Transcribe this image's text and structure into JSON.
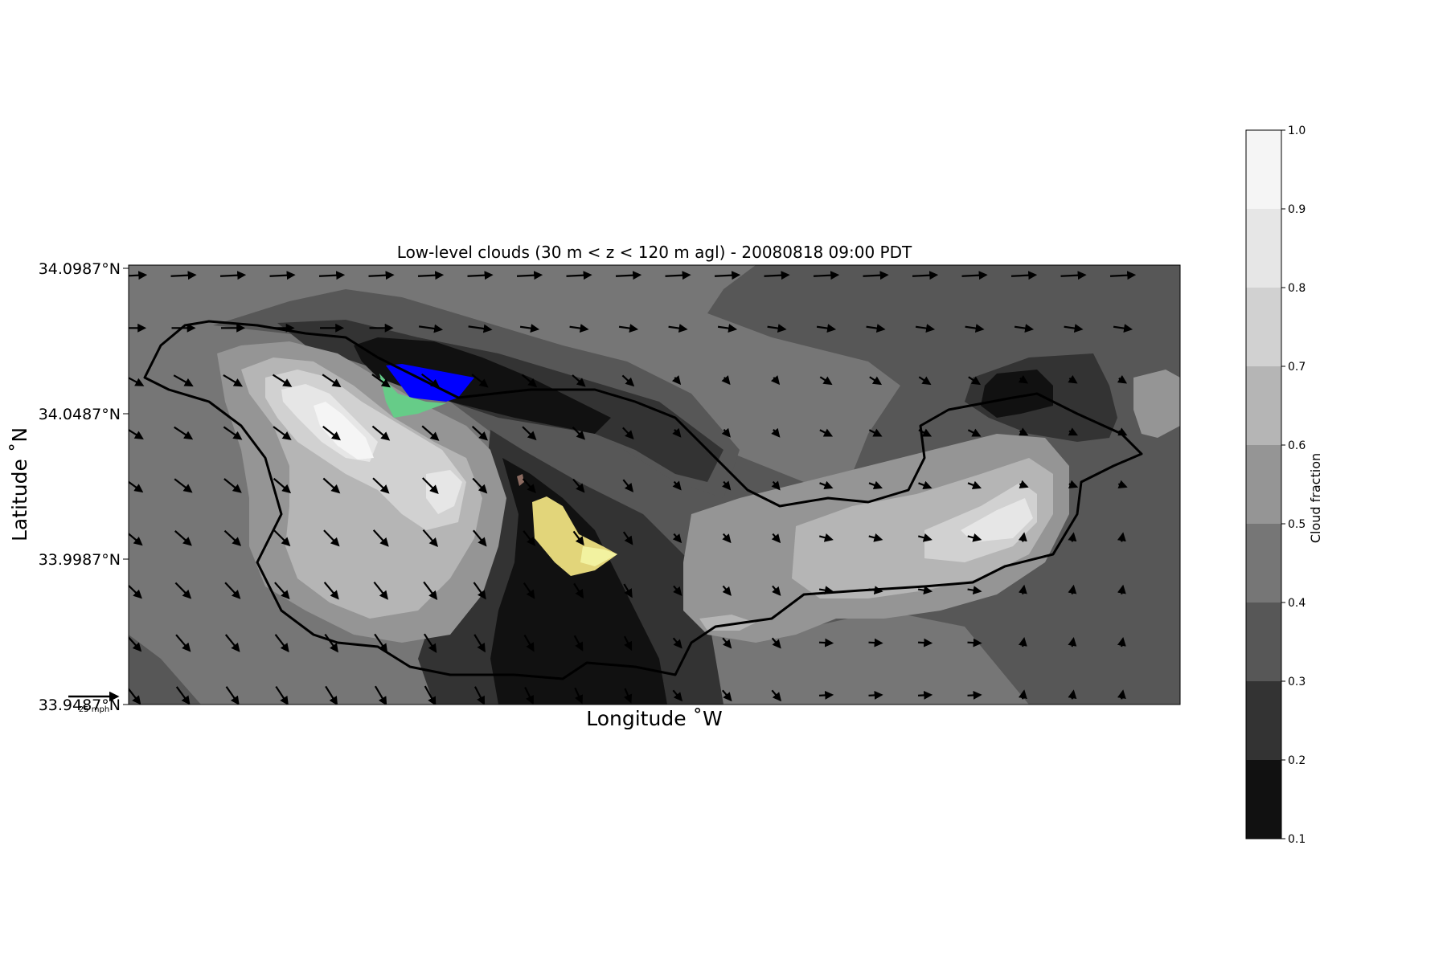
{
  "chart_data": {
    "type": "contourf",
    "title": "Low-level clouds (30 m < z < 120 m agl) - 20080818 09:00 PDT",
    "xlabel": "Longitude $^\\circ$W",
    "xlabel_display": "Longitude ˚W",
    "ylabel_display": "Latitude ˚N",
    "y_ticks": [
      "34.0987°N",
      "34.0487°N",
      "33.9987°N",
      "33.9487°N"
    ],
    "y_tick_values": [
      34.0987,
      34.0487,
      33.9987,
      33.9487
    ],
    "ylim": [
      33.9487,
      34.0987
    ],
    "x_ticks": [],
    "colorbar": {
      "label": "Cloud fraction",
      "ticks": [
        "0.1",
        "0.2",
        "0.3",
        "0.4",
        "0.5",
        "0.6",
        "0.7",
        "0.8",
        "0.9",
        "1.0"
      ],
      "levels": [
        0.1,
        0.2,
        0.3,
        0.4,
        0.5,
        0.6,
        0.7,
        0.8,
        0.9,
        1.0
      ],
      "colors": [
        "#111111",
        "#333333",
        "#575757",
        "#767676",
        "#959595",
        "#b5b5b5",
        "#d1d1d1",
        "#e6e6e6",
        "#f5f5f5"
      ]
    },
    "quiver_key": {
      "label": "25 mph"
    },
    "grid": false,
    "legend": "none"
  }
}
